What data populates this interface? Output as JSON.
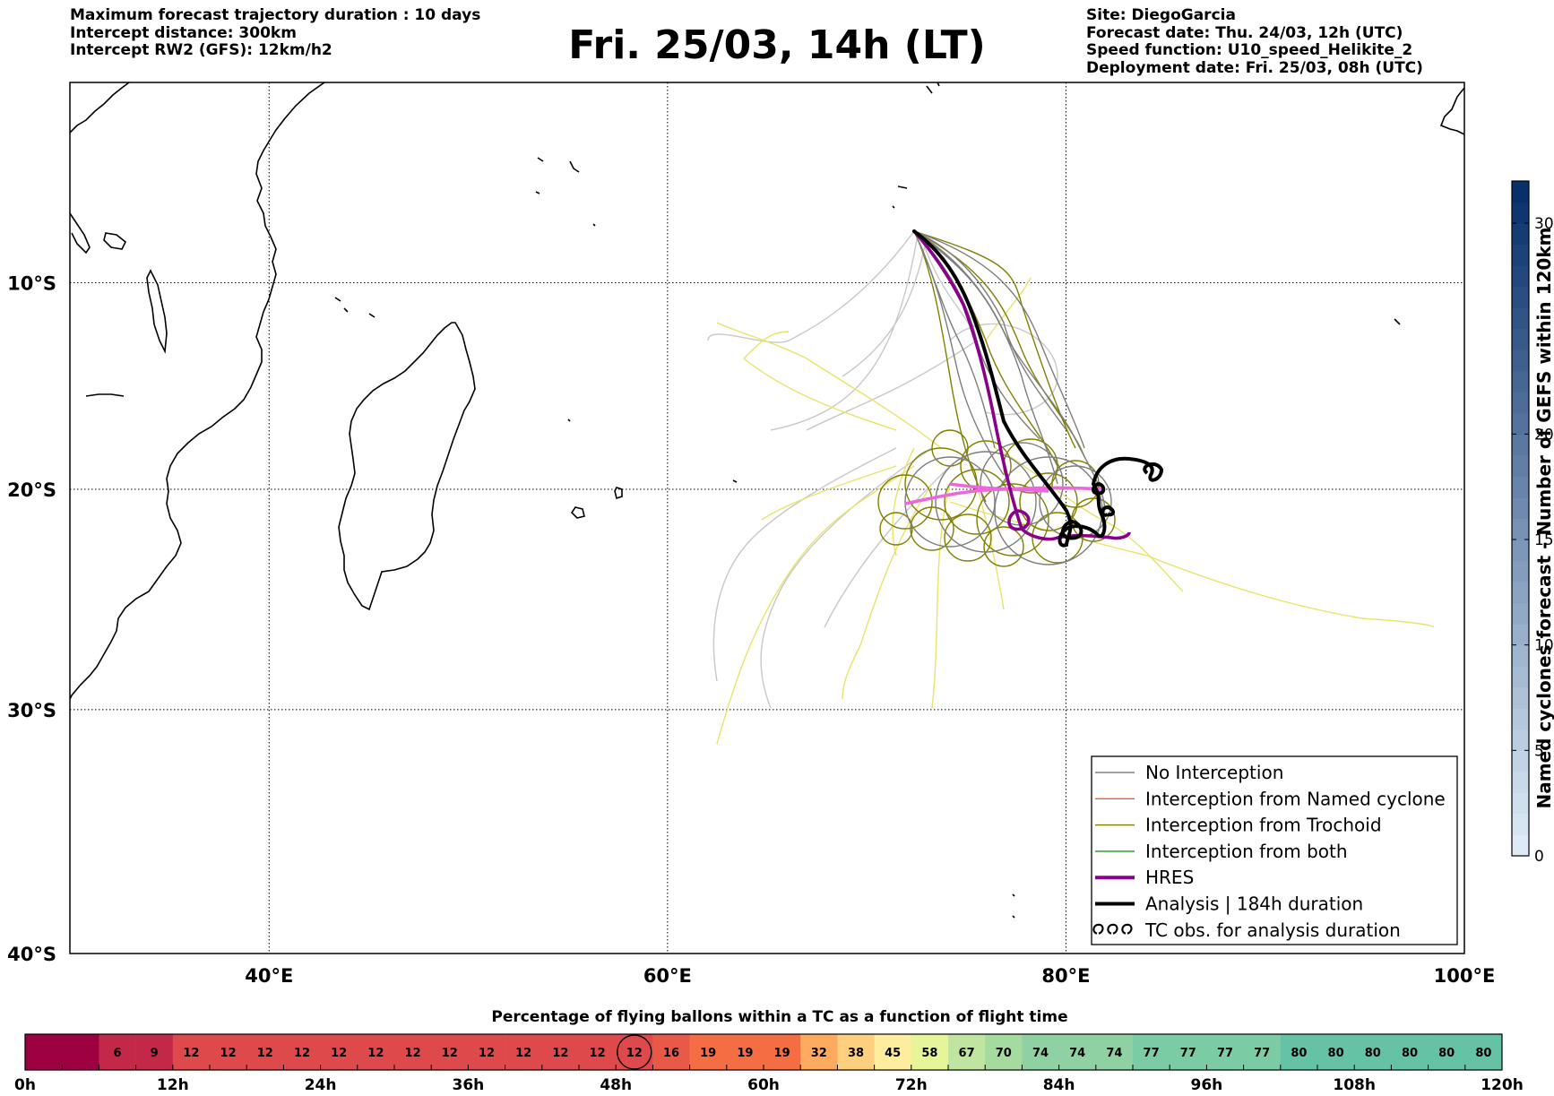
{
  "header": {
    "left": [
      "Maximum forecast trajectory duration : 10 days",
      "Intercept distance: 300km",
      "Intercept RW2 (GFS):  12km/h2"
    ],
    "title": "Fri. 25/03, 14h (LT)",
    "right": [
      "Site: DiegoGarcia",
      "Forecast date: Thu. 24/03, 12h (UTC)",
      "Speed function: U10_speed_Helikite_2",
      "Deployment date: Fri. 25/03, 08h (UTC)"
    ]
  },
  "map": {
    "lon_range": [
      30,
      100
    ],
    "lat_range": [
      -40,
      0
    ],
    "lat_labels": [
      {
        "lat": -10,
        "label": "10°S"
      },
      {
        "lat": -20,
        "label": "20°S"
      },
      {
        "lat": -30,
        "label": "30°S"
      },
      {
        "lat": -40,
        "label": "40°S"
      }
    ],
    "lon_labels": [
      {
        "lon": 40,
        "label": "40°E"
      },
      {
        "lon": 60,
        "label": "60°E"
      },
      {
        "lon": 80,
        "label": "80°E"
      },
      {
        "lon": 100,
        "label": "100°E"
      }
    ]
  },
  "colorbar": {
    "label": "Named cyclones forecast - Number of GEFS within 120km",
    "min": 0,
    "max": 32,
    "ticks": [
      "0",
      "5",
      "10",
      "15",
      "20",
      "30"
    ],
    "tick_values": [
      0,
      5,
      10,
      15,
      20,
      30
    ],
    "color_low": "#deebf7",
    "color_high": "#08306b"
  },
  "legend": [
    {
      "label": "No Interception",
      "color": "#808080",
      "style": "thin"
    },
    {
      "label": "Interception from Named cyclone",
      "color": "#ff5a1e",
      "style": "thin"
    },
    {
      "label": "Interception from Trochoid",
      "color": "#808000",
      "style": "thin"
    },
    {
      "label": "Interception from both",
      "color": "#1e961e",
      "style": "thin"
    },
    {
      "label": "HRES",
      "color": "#8b008b",
      "style": "thick"
    },
    {
      "label": "Analysis | 184h duration",
      "color": "#000000",
      "style": "thick"
    },
    {
      "label": "TC obs. for analysis duration",
      "color": "#000000",
      "style": "loops"
    }
  ],
  "bottom": {
    "title": "Percentage of flying ballons within a TC as a function of flight time",
    "values": [
      "",
      "",
      "6",
      "9",
      "12",
      "12",
      "12",
      "12",
      "12",
      "12",
      "12",
      "12",
      "12",
      "12",
      "12",
      "12",
      "12",
      "16",
      "19",
      "19",
      "19",
      "32",
      "38",
      "45",
      "58",
      "67",
      "70",
      "74",
      "74",
      "74",
      "77",
      "77",
      "77",
      "77",
      "80",
      "80",
      "80",
      "80",
      "80",
      "80"
    ],
    "colors": [
      "#9e0142",
      "#9e0142",
      "#c42848",
      "#c42848",
      "#de4a4c",
      "#de4a4c",
      "#de4a4c",
      "#de4a4c",
      "#de4a4c",
      "#de4a4c",
      "#de4a4c",
      "#de4a4c",
      "#de4a4c",
      "#de4a4c",
      "#de4a4c",
      "#de4a4c",
      "#de4a4c",
      "#e85a47",
      "#f46d43",
      "#f46d43",
      "#f46d43",
      "#fdaa5f",
      "#fdcf7e",
      "#feec9f",
      "#e6f598",
      "#bfe5a0",
      "#a5db9f",
      "#8fd1a2",
      "#8fd1a2",
      "#8fd1a2",
      "#7bcba5",
      "#7bcba5",
      "#7bcba5",
      "#7bcba5",
      "#66c2a5",
      "#66c2a5",
      "#66c2a5",
      "#66c2a5",
      "#66c2a5",
      "#66c2a5"
    ],
    "highlight_index": 16,
    "hours": [
      "0h",
      "12h",
      "24h",
      "36h",
      "48h",
      "60h",
      "72h",
      "84h",
      "96h",
      "108h",
      "120h"
    ]
  }
}
